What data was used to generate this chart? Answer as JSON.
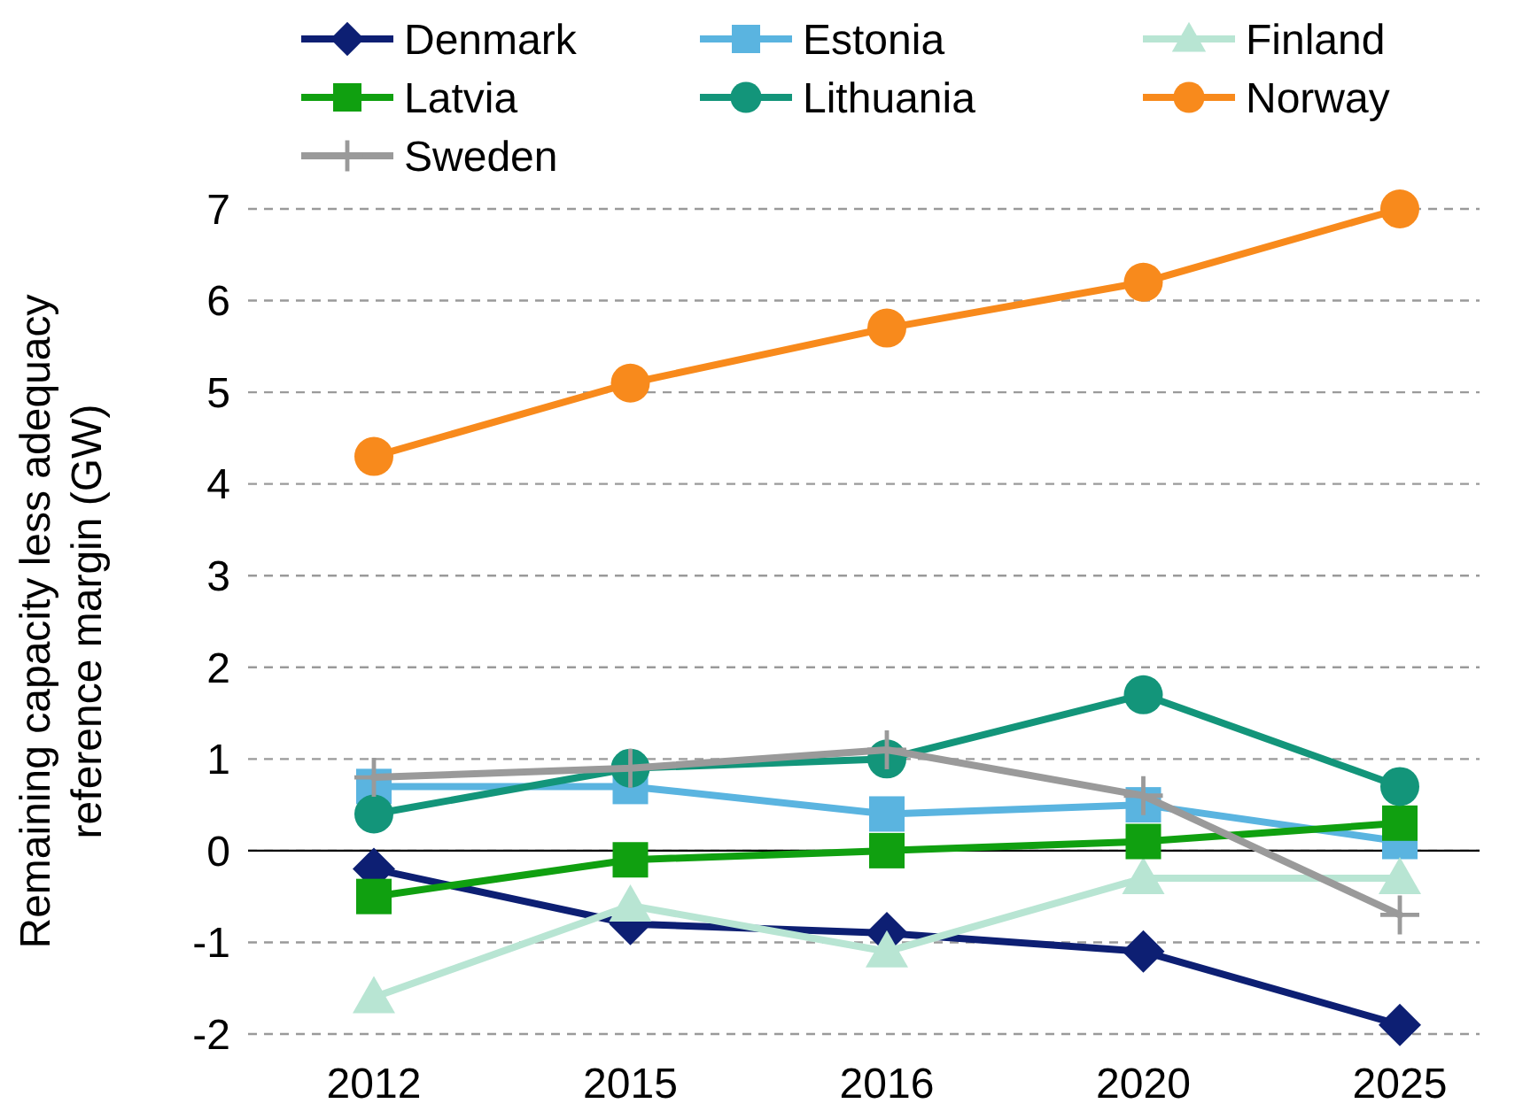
{
  "chart_data": {
    "type": "line",
    "ylabel": "Remaining capacity less adequacy reference margin (GW)",
    "categories": [
      "2012",
      "2015",
      "2016",
      "2020",
      "2025"
    ],
    "ylim": [
      -2,
      7
    ],
    "yticks": [
      -2,
      -1,
      0,
      1,
      2,
      3,
      4,
      5,
      6,
      7
    ],
    "grid": "y",
    "legend": "top",
    "series": [
      {
        "name": "Denmark",
        "color": "#0d1f73",
        "marker": "diamond",
        "values": [
          -0.2,
          -0.8,
          -0.9,
          -1.1,
          -1.9
        ]
      },
      {
        "name": "Estonia",
        "color": "#5ab4e0",
        "marker": "square",
        "values": [
          0.7,
          0.7,
          0.4,
          0.5,
          0.1
        ]
      },
      {
        "name": "Finland",
        "color": "#b8e5d3",
        "marker": "triangle",
        "values": [
          -1.6,
          -0.6,
          -1.1,
          -0.3,
          -0.3
        ]
      },
      {
        "name": "Latvia",
        "color": "#10a010",
        "marker": "square",
        "values": [
          -0.5,
          -0.1,
          0,
          0.1,
          0.3
        ]
      },
      {
        "name": "Lithuania",
        "color": "#13957a",
        "marker": "circle",
        "values": [
          0.4,
          0.9,
          1.0,
          1.7,
          0.7
        ]
      },
      {
        "name": "Norway",
        "color": "#f88a1c",
        "marker": "circle",
        "values": [
          4.3,
          5.1,
          5.7,
          6.2,
          7.0
        ]
      },
      {
        "name": "Sweden",
        "color": "#9a9a9a",
        "marker": "cross",
        "values": [
          0.8,
          0.9,
          1.1,
          0.6,
          -0.7
        ]
      }
    ]
  }
}
